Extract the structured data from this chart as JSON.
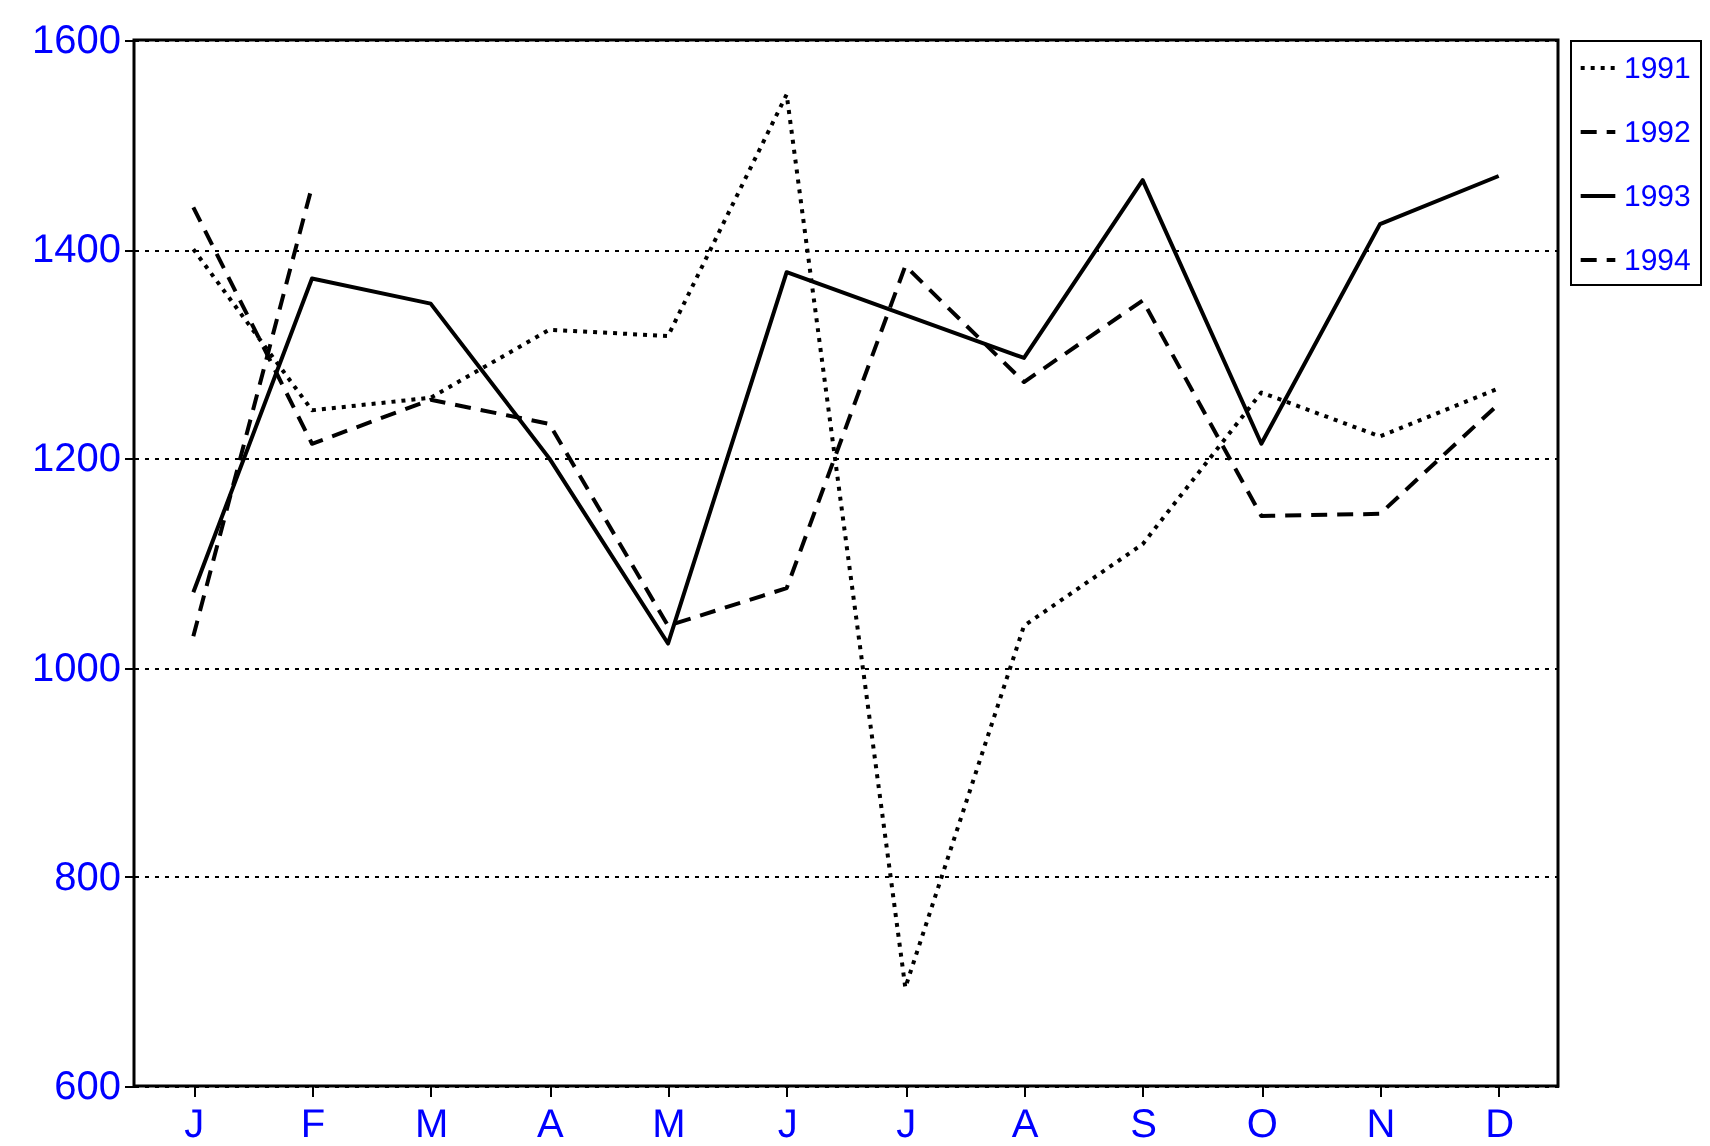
{
  "chart_data": {
    "type": "line",
    "categories": [
      "J",
      "F",
      "M",
      "A",
      "M",
      "J",
      "J",
      "A",
      "S",
      "O",
      "N",
      "D"
    ],
    "series": [
      {
        "name": "1991",
        "color": "#000000",
        "line_style": "dotted",
        "values": [
          1400,
          1246,
          1258,
          1323,
          1317,
          1548,
          694,
          1040,
          1118,
          1263,
          1221,
          1267
        ]
      },
      {
        "name": "1992",
        "color": "#000000",
        "line_style": "dashed",
        "values": [
          1440,
          1214,
          1256,
          1233,
          1040,
          1076,
          1384,
          1273,
          1351,
          1145,
          1147,
          1252
        ]
      },
      {
        "name": "1993",
        "color": "#000000",
        "line_style": "solid",
        "values": [
          1072,
          1372,
          1348,
          1200,
          1023,
          1378,
          1337,
          1296,
          1466,
          1214,
          1424,
          1470
        ]
      },
      {
        "name": "1994",
        "color": "#000000",
        "line_style": "dashed",
        "values": [
          1030,
          1460,
          null,
          null,
          null,
          null,
          null,
          null,
          null,
          null,
          null,
          null
        ]
      }
    ],
    "ylim": [
      600,
      1600
    ],
    "yticks": [
      600,
      800,
      1000,
      1200,
      1400,
      1600
    ],
    "grid": "y",
    "legend": "right",
    "marker": "none"
  }
}
